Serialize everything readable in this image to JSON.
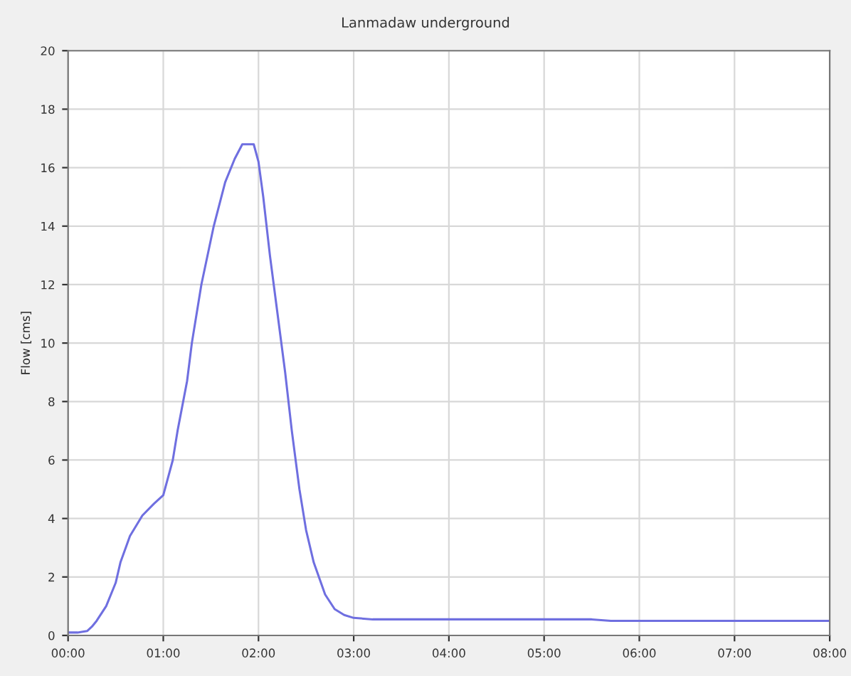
{
  "chart_data": {
    "type": "line",
    "title": "Lanmadaw underground",
    "ylabel": "Flow [cms]",
    "x": [
      0,
      0.1,
      0.2,
      0.25,
      0.3,
      0.4,
      0.5,
      0.55,
      0.65,
      0.78,
      0.9,
      1.0,
      1.1,
      1.15,
      1.25,
      1.3,
      1.4,
      1.53,
      1.65,
      1.75,
      1.83,
      1.9,
      1.95,
      2.0,
      2.05,
      2.12,
      2.2,
      2.28,
      2.35,
      2.43,
      2.5,
      2.58,
      2.7,
      2.8,
      2.9,
      3.0,
      3.2,
      4.0,
      5.0,
      5.5,
      5.7,
      6.0,
      7.0,
      8.0
    ],
    "series": [
      {
        "color": "#6f6fe0",
        "values": [
          0.1,
          0.1,
          0.15,
          0.3,
          0.5,
          1.0,
          1.8,
          2.5,
          3.4,
          4.1,
          4.5,
          4.8,
          6.0,
          7.0,
          8.7,
          10.0,
          12.0,
          14.0,
          15.5,
          16.3,
          16.8,
          16.8,
          16.8,
          16.2,
          15.0,
          13.0,
          11.0,
          9.0,
          7.0,
          5.0,
          3.6,
          2.5,
          1.4,
          0.9,
          0.7,
          0.6,
          0.55,
          0.55,
          0.55,
          0.55,
          0.5,
          0.5,
          0.5,
          0.5
        ]
      }
    ],
    "xlim": [
      0,
      8
    ],
    "ylim": [
      0,
      20
    ],
    "xticks": [
      {
        "value": 0,
        "label": "00:00"
      },
      {
        "value": 1,
        "label": "01:00"
      },
      {
        "value": 2,
        "label": "02:00"
      },
      {
        "value": 3,
        "label": "03:00"
      },
      {
        "value": 4,
        "label": "04:00"
      },
      {
        "value": 5,
        "label": "05:00"
      },
      {
        "value": 6,
        "label": "06:00"
      },
      {
        "value": 7,
        "label": "07:00"
      },
      {
        "value": 8,
        "label": "08:00"
      }
    ],
    "yticks": [
      0,
      2,
      4,
      6,
      8,
      10,
      12,
      14,
      16,
      18,
      20
    ],
    "grid": true,
    "line_style": "solid",
    "marker": "none"
  }
}
